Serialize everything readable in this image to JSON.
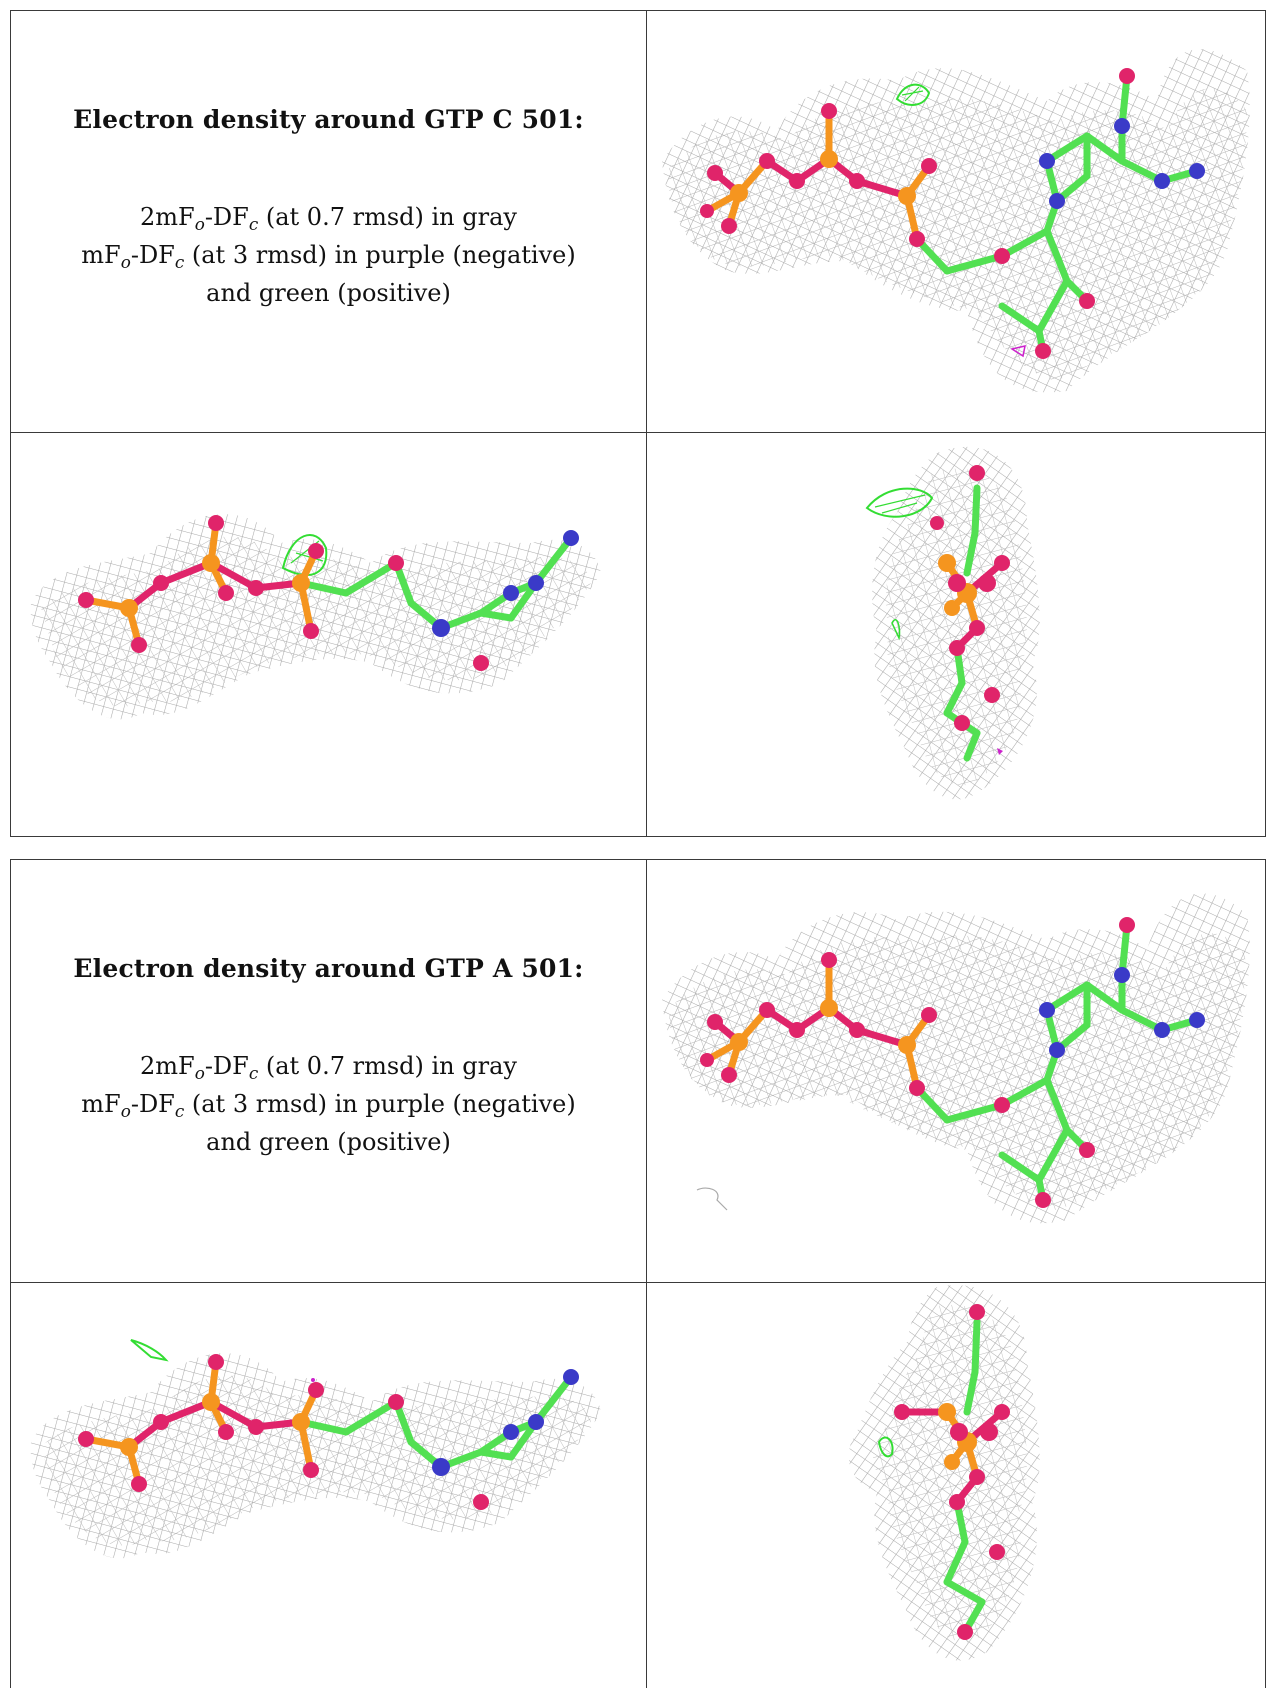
{
  "figure_panels": [
    {
      "title": "Electron density around GTP C 501:",
      "line1": {
        "pre": "2mF",
        "sub1": "o",
        "mid": "-DF",
        "sub2": "c",
        "post": " (at 0.7 rmsd) in gray"
      },
      "line2": {
        "pre": "mF",
        "sub1": "o",
        "mid": "-DF",
        "sub2": "c",
        "post": " (at 3 rmsd) in purple (negative)"
      },
      "line3": "and green (positive)"
    },
    {
      "title": "Electron density around GTP A 501:",
      "line1": {
        "pre": "2mF",
        "sub1": "o",
        "mid": "-DF",
        "sub2": "c",
        "post": " (at 0.7 rmsd) in gray"
      },
      "line2": {
        "pre": "mF",
        "sub1": "o",
        "mid": "-DF",
        "sub2": "c",
        "post": " (at 3 rmsd) in purple (negative)"
      },
      "line3": "and green (positive)"
    }
  ],
  "colors": {
    "mesh_gray": "#a9a9a9",
    "phosphorus": "#f5951f",
    "oxygen": "#e0246a",
    "nitrogen": "#3a3ac8",
    "carbon": "#52e052",
    "positive_density": "#33dd33",
    "negative_density": "#cc22cc"
  },
  "views": [
    "front",
    "side",
    "end-on"
  ]
}
